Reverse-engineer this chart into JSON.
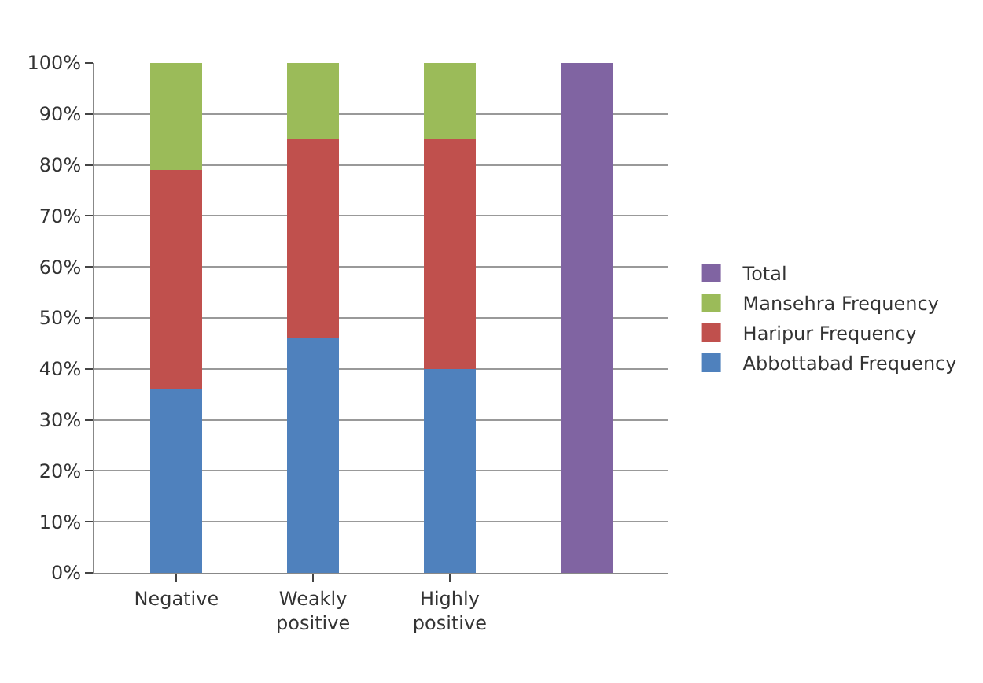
{
  "chart_data": {
    "type": "bar",
    "stacked": true,
    "categories": [
      "Negative",
      "Weakly positive",
      "Highly positive",
      null
    ],
    "series": [
      {
        "name": "Abbottabad Frequency",
        "color": "#4f81bd",
        "values": [
          36,
          46,
          40,
          null
        ]
      },
      {
        "name": "Haripur Frequency",
        "color": "#c0504d",
        "values": [
          43,
          39,
          45,
          null
        ]
      },
      {
        "name": "Mansehra Frequency",
        "color": "#9bbb59",
        "values": [
          21,
          15,
          15,
          null
        ]
      },
      {
        "name": "Total",
        "color": "#8064a2",
        "values": [
          null,
          null,
          null,
          100
        ]
      }
    ],
    "ylim": [
      0,
      100
    ],
    "yticks": [
      {
        "value": 0,
        "label": "0%"
      },
      {
        "value": 10,
        "label": "10%"
      },
      {
        "value": 20,
        "label": "20%"
      },
      {
        "value": 30,
        "label": "30%"
      },
      {
        "value": 40,
        "label": "40%"
      },
      {
        "value": 50,
        "label": "50%"
      },
      {
        "value": 60,
        "label": "60%"
      },
      {
        "value": 70,
        "label": "70%"
      },
      {
        "value": 80,
        "label": "80%"
      },
      {
        "value": 90,
        "label": "90%"
      },
      {
        "value": 100,
        "label": "100%"
      }
    ],
    "grid": "y",
    "legend": "right"
  }
}
